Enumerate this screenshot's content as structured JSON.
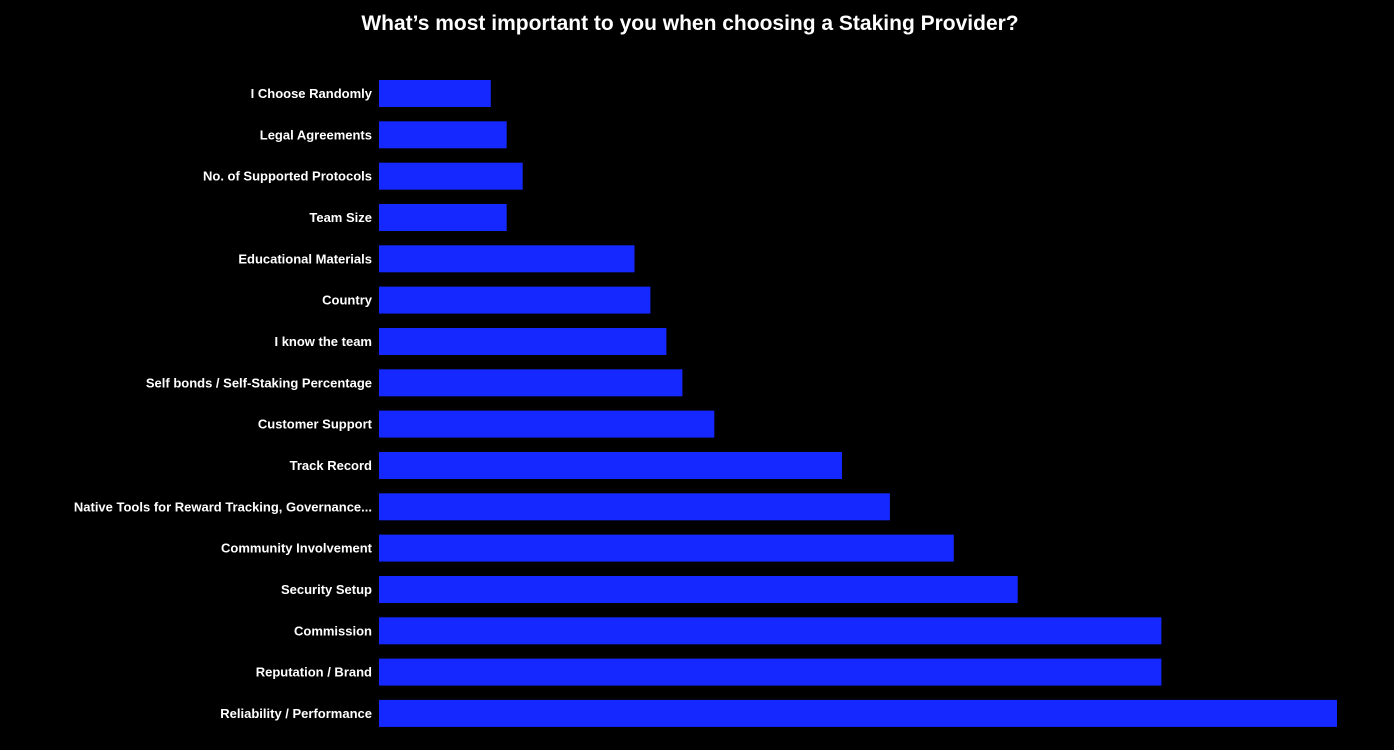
{
  "chart_data": {
    "type": "bar",
    "orientation": "horizontal",
    "title": "What’s most important to you when choosing a Staking Provider?",
    "xlabel": "",
    "ylabel": "",
    "grid": false,
    "legend": "none",
    "xlim": [
      0,
      60
    ],
    "bar_color": "#1428ff",
    "background": "#000000",
    "categories": [
      "I Choose Randomly",
      "Legal Agreements",
      "No. of Supported Protocols",
      "Team Size",
      "Educational Materials",
      "Country",
      "I know the team",
      "Self bonds / Self-Staking Percentage",
      "Customer Support",
      "Track Record",
      "Native Tools for Reward Tracking, Governance...",
      "Community Involvement",
      "Security Setup",
      "Commission",
      "Reputation / Brand",
      "Reliability / Performance"
    ],
    "values": [
      7,
      8,
      9,
      8,
      16,
      17,
      18,
      19,
      21,
      29,
      32,
      36,
      40,
      49,
      49,
      60
    ]
  }
}
